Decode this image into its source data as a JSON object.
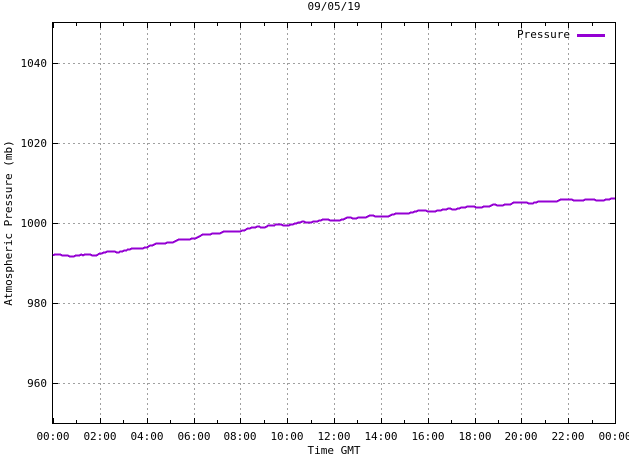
{
  "chart_data": {
    "type": "line",
    "title": "09/05/19",
    "xlabel": "Time GMT",
    "ylabel": "Atmospheric Pressure (mb)",
    "xlim_hours": [
      0,
      24
    ],
    "ylim": [
      950,
      1050
    ],
    "x_tick_hours": [
      0,
      2,
      4,
      6,
      8,
      10,
      12,
      14,
      16,
      18,
      20,
      22,
      24
    ],
    "x_tick_labels": [
      "00:00",
      "02:00",
      "04:00",
      "06:00",
      "08:00",
      "10:00",
      "12:00",
      "14:00",
      "16:00",
      "18:00",
      "20:00",
      "22:00",
      "00:00"
    ],
    "x_minor_tick_every_hours": 1,
    "y_ticks": [
      960,
      980,
      1000,
      1020,
      1040
    ],
    "grid": true,
    "legend": {
      "position": "top-right-inside",
      "label": "Pressure"
    },
    "series": [
      {
        "name": "Pressure",
        "color": "#9400d3",
        "x_hours": [
          0,
          1,
          2,
          3,
          4,
          5,
          6,
          7,
          8,
          9,
          10,
          11,
          12,
          13,
          14,
          15,
          16,
          17,
          18,
          19,
          20,
          21,
          22,
          23,
          24
        ],
        "values": [
          991.9,
          992.0,
          992.4,
          993.2,
          994.2,
          995.3,
          996.5,
          997.5,
          998.4,
          999.2,
          999.8,
          1000.4,
          1001.0,
          1001.4,
          1001.8,
          1002.6,
          1003.1,
          1003.6,
          1004.1,
          1004.6,
          1005.1,
          1005.5,
          1005.8,
          1005.9,
          1006.0
        ]
      }
    ],
    "colors": {
      "background": "#ffffff",
      "axis": "#000000",
      "grid": "#a0a0a0",
      "text": "#000000",
      "line": "#9400d3"
    }
  }
}
